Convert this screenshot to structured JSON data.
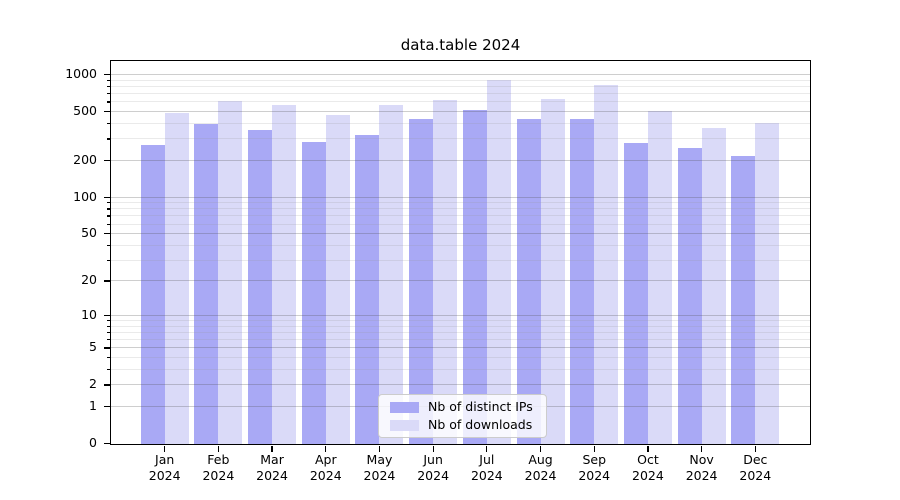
{
  "chart_data": {
    "type": "bar",
    "title": "data.table 2024",
    "scale": "log10(value+1)",
    "ylim": [
      0,
      1280
    ],
    "grid": "horizontal",
    "legend_position": "inside-bottom-center",
    "x_labels": [
      {
        "top": "Jan",
        "bottom": "2024"
      },
      {
        "top": "Feb",
        "bottom": "2024"
      },
      {
        "top": "Mar",
        "bottom": "2024"
      },
      {
        "top": "Apr",
        "bottom": "2024"
      },
      {
        "top": "May",
        "bottom": "2024"
      },
      {
        "top": "Jun",
        "bottom": "2024"
      },
      {
        "top": "Jul",
        "bottom": "2024"
      },
      {
        "top": "Aug",
        "bottom": "2024"
      },
      {
        "top": "Sep",
        "bottom": "2024"
      },
      {
        "top": "Oct",
        "bottom": "2024"
      },
      {
        "top": "Nov",
        "bottom": "2024"
      },
      {
        "top": "Dec",
        "bottom": "2024"
      }
    ],
    "y_ticks_major": [
      0,
      1,
      2,
      5,
      10,
      20,
      50,
      100,
      200,
      500,
      1000
    ],
    "y_tick_labels": [
      "0",
      "1",
      "2",
      "5",
      "10",
      "20",
      "50",
      "100",
      "200",
      "500",
      "1000"
    ],
    "y_ticks_minor": [
      3,
      4,
      6,
      7,
      8,
      9,
      30,
      40,
      60,
      70,
      80,
      90,
      300,
      400,
      600,
      700,
      800,
      900
    ],
    "series": [
      {
        "name": "Nb of distinct IPs",
        "color": "#a9a9f5",
        "values": [
          272,
          403,
          360,
          283,
          328,
          442,
          522,
          442,
          442,
          278,
          253,
          218
        ]
      },
      {
        "name": "Nb of downloads",
        "color": "#dadaf8",
        "values": [
          494,
          618,
          573,
          476,
          573,
          629,
          913,
          641,
          832,
          513,
          374,
          410
        ]
      }
    ],
    "colors": {
      "grid_major": "rgba(80,80,80,0.28)",
      "grid_minor": "rgba(150,150,150,0.20)",
      "spine": "#000000",
      "background": "#ffffff"
    }
  }
}
